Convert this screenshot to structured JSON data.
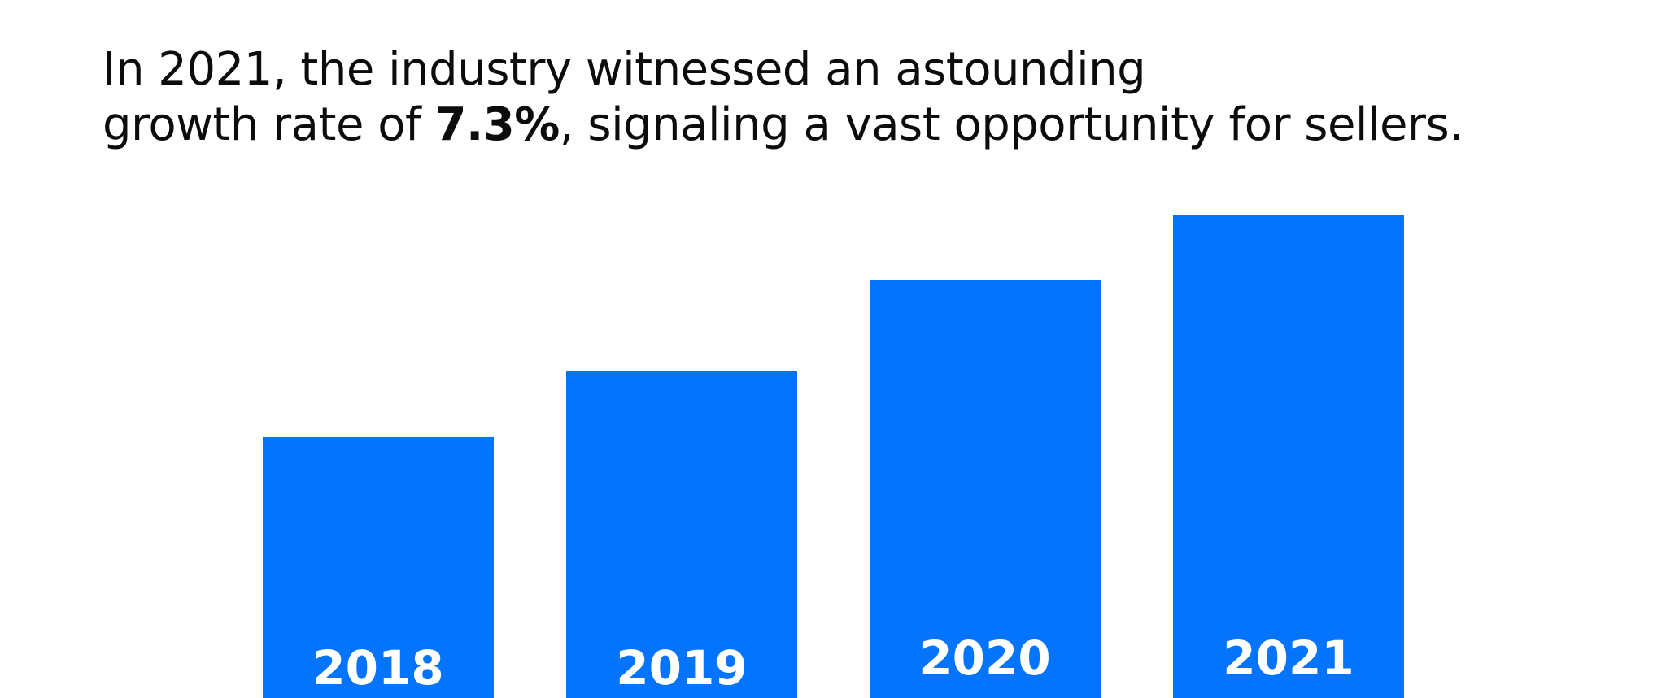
{
  "headline": {
    "line1": "In 2021, the industry witnessed an astounding",
    "line2_prefix": "growth rate of ",
    "line2_bold": "7.3%",
    "line2_suffix": ", signaling a vast opportunity for sellers."
  },
  "chart_data": {
    "type": "bar",
    "categories": [
      "2018",
      "2019",
      "2020",
      "2021"
    ],
    "values": [
      2.99,
      3.75,
      4.79,
      5.54
    ],
    "bar_color": "#0474fc",
    "label_color": "#ffffff",
    "grid": false,
    "xlabel": "",
    "ylabel": "",
    "ylim": [
      0,
      8
    ]
  }
}
